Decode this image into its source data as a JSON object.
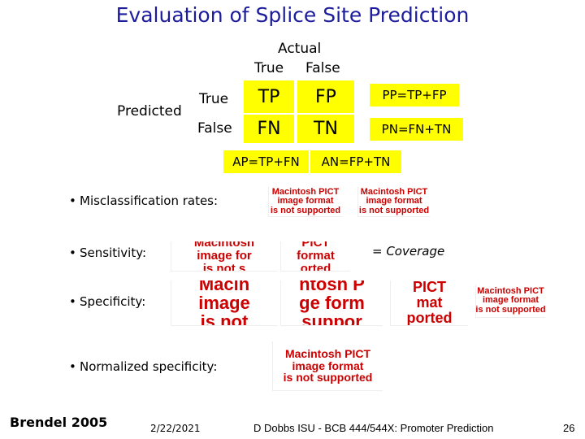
{
  "header": {
    "title": "Evaluation of Splice Site Prediction"
  },
  "matrix": {
    "actual": "Actual",
    "actual_true": "True",
    "actual_false": "False",
    "predicted": "Predicted",
    "predicted_true": "True",
    "predicted_false": "False",
    "cells": [
      [
        "TP",
        "FP"
      ],
      [
        "FN",
        "TN"
      ]
    ],
    "row_sums": [
      "PP=TP+FP",
      "PN=FN+TN"
    ],
    "col_sums": [
      "AP=TP+FN",
      "AN=FP+TN"
    ]
  },
  "bullets": [
    {
      "label": "Misclassification rates:",
      "images": [
        [
          "Macintosh PICT",
          "image format",
          "is not supported"
        ],
        [
          "Macintosh PICT",
          "image format",
          "is not supported"
        ]
      ]
    },
    {
      "label": "Sensitivity:",
      "images": [
        [
          "Macintosh",
          "image for",
          "is not s"
        ],
        [
          "PICT",
          "format",
          "orted"
        ]
      ],
      "note": "= Coverage"
    },
    {
      "label": "Specificity:",
      "images": [
        [
          "Macin",
          "image",
          "is not"
        ],
        [
          "ntosh P",
          "ge form",
          "suppor"
        ],
        [
          "PICT",
          "mat",
          "ported"
        ],
        [
          "Macintosh PICT",
          "image format",
          "is not supported"
        ]
      ]
    },
    {
      "label": "Normalized specificity:",
      "images": [
        [
          "Macintosh PICT",
          "image format",
          "is not supported"
        ]
      ]
    }
  ],
  "footer": {
    "author": "Brendel 2005",
    "date": "2/22/2021",
    "course": "D Dobbs ISU - BCB 444/544X: Promoter Prediction",
    "page": "26"
  }
}
